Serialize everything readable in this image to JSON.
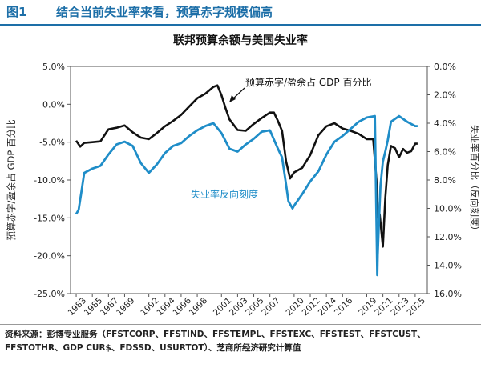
{
  "header": {
    "figure_label": "图1",
    "title": "结合当前失业率来看，预算赤字规模偏高"
  },
  "chart_data": {
    "type": "line",
    "title": "联邦预算余额与美国失业率",
    "left_axis": {
      "label": "预算赤字/盈余占 GDP 百分比",
      "range": [
        -25,
        5
      ],
      "ticks": [
        "5.0%",
        "0.0%",
        "-5.0%",
        "-10.0%",
        "-15.0%",
        "-20.0%",
        "-25.0%"
      ]
    },
    "right_axis": {
      "label": "失业率百分比（反向刻度）",
      "range": [
        0,
        16
      ],
      "inverted": true,
      "ticks": [
        "0.0%",
        "2.0%",
        "4.0%",
        "6.0%",
        "8.0%",
        "10.0%",
        "12.0%",
        "14.0%",
        "16.0%"
      ]
    },
    "x_ticks": [
      "1983",
      "1985",
      "1987",
      "1989",
      "1992",
      "1994",
      "1996",
      "1998",
      "2001",
      "2003",
      "2005",
      "2007",
      "2010",
      "2012",
      "2014",
      "2016",
      "2019",
      "2021",
      "2023",
      "2025"
    ],
    "series": [
      {
        "name": "预算赤字/盈余占 GDP 百分比",
        "axis": "left",
        "color": "#111111",
        "x": [
          1983,
          1983.5,
          1984,
          1985,
          1986,
          1987,
          1988,
          1989,
          1990,
          1991,
          1992,
          1993,
          1994,
          1995,
          1996,
          1997,
          1998,
          1999,
          2000,
          2000.5,
          2001,
          2001.5,
          2002,
          2003,
          2004,
          2005,
          2006,
          2007,
          2007.5,
          2008,
          2008.5,
          2009,
          2009.5,
          2010,
          2011,
          2012,
          2013,
          2014,
          2015,
          2016,
          2017,
          2018,
          2019,
          2019.8,
          2020.2,
          2020.4,
          2020.6,
          2021,
          2021.3,
          2021.6,
          2022,
          2022.5,
          2023,
          2023.5,
          2024,
          2024.5,
          2025,
          2025.3
        ],
        "values": [
          -4.8,
          -5.6,
          -5.1,
          -5.0,
          -4.9,
          -3.3,
          -3.1,
          -2.8,
          -3.7,
          -4.4,
          -4.6,
          -3.8,
          -2.9,
          -2.2,
          -1.4,
          -0.3,
          0.8,
          1.4,
          2.3,
          2.5,
          1.2,
          -0.5,
          -2.0,
          -3.4,
          -3.5,
          -2.6,
          -1.8,
          -1.1,
          -1.1,
          -2.2,
          -3.5,
          -7.5,
          -9.8,
          -9.0,
          -8.4,
          -6.7,
          -4.1,
          -2.9,
          -2.5,
          -3.2,
          -3.5,
          -3.9,
          -4.6,
          -4.6,
          -10.0,
          -15.0,
          -14.5,
          -18.8,
          -12.4,
          -8.0,
          -5.5,
          -5.8,
          -7.0,
          -5.9,
          -6.4,
          -6.2,
          -5.2,
          -5.2
        ]
      },
      {
        "name": "失业率反向刻度",
        "axis": "right",
        "color": "#1f8dc8",
        "x": [
          1983,
          1983.3,
          1983.6,
          1984,
          1985,
          1986,
          1987,
          1988,
          1989,
          1990,
          1991,
          1992,
          1993,
          1994,
          1995,
          1996,
          1997,
          1998,
          1999,
          2000,
          2001,
          2002,
          2003,
          2004,
          2005,
          2006,
          2007,
          2008,
          2008.5,
          2009,
          2009.3,
          2009.8,
          2010,
          2011,
          2012,
          2013,
          2014,
          2015,
          2016,
          2017,
          2018,
          2019,
          2020,
          2020.3,
          2020.35,
          2020.5,
          2020.7,
          2021,
          2021.3,
          2021.6,
          2022,
          2023,
          2024,
          2025,
          2025.3
        ],
        "values": [
          10.4,
          10.1,
          9.0,
          7.5,
          7.2,
          7.0,
          6.2,
          5.5,
          5.3,
          5.6,
          6.8,
          7.5,
          6.9,
          6.1,
          5.6,
          5.4,
          4.9,
          4.5,
          4.2,
          4.0,
          4.7,
          5.8,
          6.0,
          5.5,
          5.1,
          4.6,
          4.5,
          5.8,
          6.4,
          8.3,
          9.5,
          10.0,
          9.8,
          9.0,
          8.1,
          7.4,
          6.2,
          5.3,
          4.9,
          4.4,
          3.9,
          3.6,
          3.5,
          14.7,
          13.3,
          11.1,
          8.4,
          6.7,
          6.0,
          5.2,
          3.9,
          3.5,
          3.9,
          4.2,
          4.2
        ]
      }
    ],
    "annotations": [
      {
        "text": "预算赤字/盈余占 GDP 百分比"
      },
      {
        "text": "失业率反向刻度"
      }
    ]
  },
  "footer": {
    "source": "资料来源：彭博专业服务（FFSTCORP、FFSTIND、FFSTEMPL、FFSTEXC、FFSTEST、FFSTCUST、FFSTOTHR、GDP CUR$、FDSSD、USURTOT）、芝商所经济研究计算值"
  }
}
